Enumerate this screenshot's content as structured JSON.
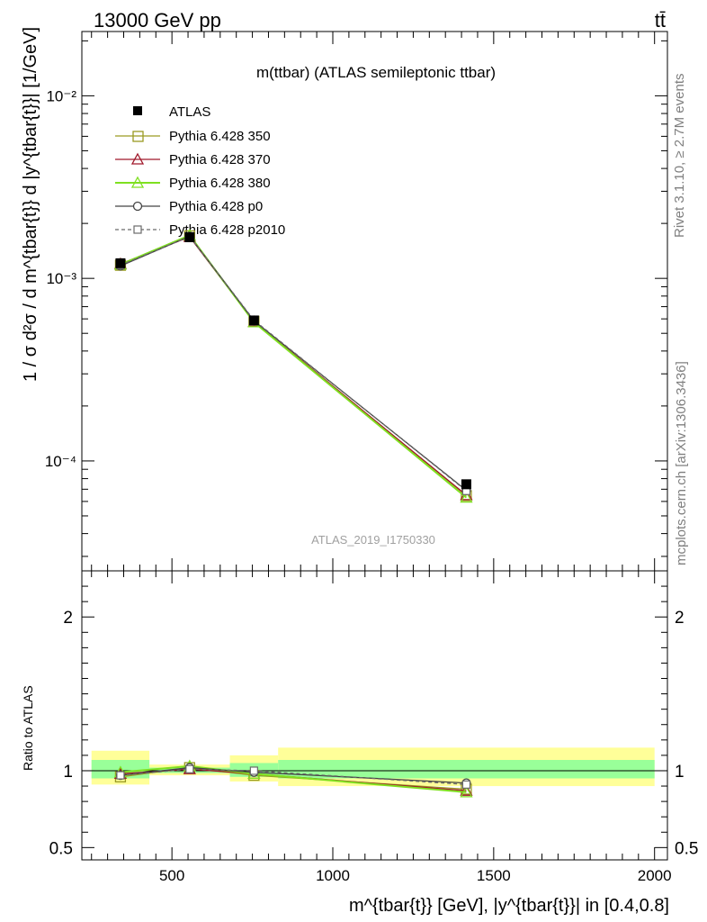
{
  "header": {
    "left": "13000 GeV pp",
    "right": "tt̄"
  },
  "side": {
    "rivet": "Rivet 3.1.10, ≥ 2.7M events",
    "mcplots": "mcplots.cern.ch [arXiv:1306.3436]"
  },
  "chart_data": [
    {
      "type": "line",
      "title": "m(ttbar) (ATLAS semileptonic ttbar)",
      "watermark": "ATLAS_2019_I1750330",
      "ylabel": "1 / σ d²σ / d m^{tbar{t}} d |y^{tbar{t}}| [1/GeV]",
      "yscale": "log",
      "xlim": [
        220,
        2040
      ],
      "ylim": [
        2.5e-05,
        0.0225
      ],
      "yticks": [
        {
          "value": 0.0001,
          "label": "10⁻⁴"
        },
        {
          "value": 0.001,
          "label": "10⁻³"
        },
        {
          "value": 0.01,
          "label": "10⁻²"
        }
      ],
      "legend_position": "top-left",
      "x": [
        340,
        555,
        755,
        1415
      ],
      "bins": [
        [
          250,
          430
        ],
        [
          430,
          680
        ],
        [
          680,
          830
        ],
        [
          830,
          2000
        ]
      ],
      "series": [
        {
          "name": "ATLAS",
          "color": "#000000",
          "marker": "filled-square",
          "values": [
            0.00121,
            0.00168,
            0.000588,
            7.45e-05
          ]
        },
        {
          "name": "Pythia 6.428 350",
          "color": "#9a9a22",
          "marker": "open-square",
          "values": [
            0.00118,
            0.00171,
            0.000582,
            6.45e-05
          ]
        },
        {
          "name": "Pythia 6.428 370",
          "color": "#a0182a",
          "marker": "open-triangle",
          "values": [
            0.0012,
            0.00169,
            0.000578,
            6.5e-05
          ]
        },
        {
          "name": "Pythia 6.428 380",
          "color": "#7fe020",
          "marker": "open-triangle",
          "values": [
            0.00119,
            0.00172,
            0.000575,
            6.3e-05
          ]
        },
        {
          "name": "Pythia 6.428 p0",
          "color": "#444444",
          "marker": "open-circle",
          "values": [
            0.00117,
            0.0017,
            0.000585,
            6.9e-05
          ]
        },
        {
          "name": "Pythia 6.428 p2010",
          "color": "#6a6a6a",
          "marker": "open-square-dashed",
          "values": [
            0.00118,
            0.0017,
            0.00059,
            6.85e-05
          ]
        }
      ]
    },
    {
      "type": "line",
      "ylabel": "Ratio to ATLAS",
      "xlabel": "m^{tbar{t}} [GeV], |y^{tbar{t}}| in [0.4,0.8]",
      "xlim": [
        220,
        2040
      ],
      "ylim": [
        0.42,
        2.3
      ],
      "xticks": [
        500,
        1000,
        1500,
        2000
      ],
      "yticks": [
        {
          "value": 0.5,
          "label": "0.5"
        },
        {
          "value": 1,
          "label": "1"
        },
        {
          "value": 2,
          "label": "2"
        }
      ],
      "bands": [
        {
          "x0": 250,
          "x1": 430,
          "inner": [
            0.95,
            1.07
          ],
          "outer": [
            0.91,
            1.13
          ]
        },
        {
          "x0": 430,
          "x1": 680,
          "inner": [
            0.985,
            1.02
          ],
          "outer": [
            0.97,
            1.04
          ]
        },
        {
          "x0": 680,
          "x1": 830,
          "inner": [
            0.96,
            1.05
          ],
          "outer": [
            0.93,
            1.1
          ]
        },
        {
          "x0": 830,
          "x1": 2000,
          "inner": [
            0.95,
            1.07
          ],
          "outer": [
            0.9,
            1.15
          ]
        }
      ],
      "x": [
        340,
        555,
        755,
        1415
      ],
      "series": [
        {
          "name": "Pythia 6.428 350",
          "color": "#9a9a22",
          "marker": "open-square",
          "values": [
            0.96,
            1.02,
            0.97,
            0.88
          ]
        },
        {
          "name": "Pythia 6.428 370",
          "color": "#a0182a",
          "marker": "open-triangle",
          "values": [
            0.98,
            1.01,
            0.98,
            0.87
          ]
        },
        {
          "name": "Pythia 6.428 380",
          "color": "#7fe020",
          "marker": "open-triangle",
          "values": [
            0.99,
            1.03,
            0.98,
            0.86
          ]
        },
        {
          "name": "Pythia 6.428 p0",
          "color": "#444444",
          "marker": "open-circle",
          "values": [
            0.97,
            1.02,
            0.99,
            0.92
          ]
        },
        {
          "name": "Pythia 6.428 p2010",
          "color": "#6a6a6a",
          "marker": "open-square-dashed",
          "values": [
            0.97,
            1.01,
            1.0,
            0.91
          ]
        }
      ]
    }
  ]
}
